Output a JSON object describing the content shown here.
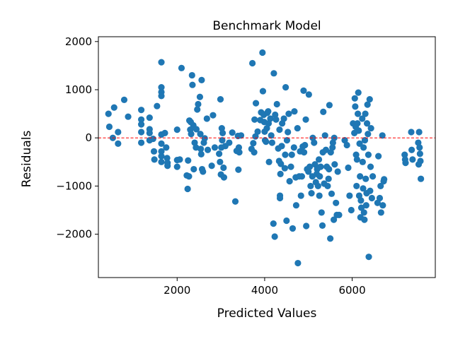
{
  "chart_data": {
    "type": "scatter",
    "title": "Benchmark Model",
    "xlabel": "Predicted Values",
    "ylabel": "Residuals",
    "xlim": [
      200,
      7900
    ],
    "ylim": [
      -2900,
      2100
    ],
    "xticks": [
      2000,
      4000,
      6000
    ],
    "yticks": [
      2000,
      1000,
      0,
      -1000,
      -2000
    ],
    "xtick_labels": [
      "2000",
      "4000",
      "6000"
    ],
    "ytick_labels": [
      "2000",
      "1000",
      "0",
      "−1000",
      "−2000"
    ],
    "grid": false,
    "reference_line": {
      "y": 0,
      "color": "#ff0000",
      "style": "dashed"
    },
    "marker_color": "#1f77b4",
    "points": [
      [
        430,
        500
      ],
      [
        450,
        230
      ],
      [
        530,
        0
      ],
      [
        560,
        630
      ],
      [
        650,
        120
      ],
      [
        650,
        -120
      ],
      [
        790,
        790
      ],
      [
        880,
        440
      ],
      [
        1180,
        580
      ],
      [
        1180,
        380
      ],
      [
        1180,
        280
      ],
      [
        1180,
        120
      ],
      [
        1180,
        -100
      ],
      [
        1370,
        420
      ],
      [
        1370,
        180
      ],
      [
        1370,
        100
      ],
      [
        1370,
        -50
      ],
      [
        1450,
        -20
      ],
      [
        1470,
        -280
      ],
      [
        1480,
        -450
      ],
      [
        1540,
        660
      ],
      [
        1640,
        1570
      ],
      [
        1640,
        1050
      ],
      [
        1640,
        950
      ],
      [
        1640,
        870
      ],
      [
        1640,
        70
      ],
      [
        1640,
        -120
      ],
      [
        1640,
        -280
      ],
      [
        1640,
        -380
      ],
      [
        1640,
        -500
      ],
      [
        1720,
        100
      ],
      [
        1750,
        -200
      ],
      [
        1770,
        -420
      ],
      [
        1780,
        -520
      ],
      [
        1780,
        -580
      ],
      [
        2000,
        -600
      ],
      [
        2000,
        -460
      ],
      [
        2000,
        170
      ],
      [
        2060,
        -450
      ],
      [
        2100,
        1450
      ],
      [
        2220,
        -780
      ],
      [
        2240,
        -1060
      ],
      [
        2250,
        -470
      ],
      [
        2270,
        -800
      ],
      [
        2280,
        360
      ],
      [
        2300,
        170
      ],
      [
        2310,
        330
      ],
      [
        2320,
        80
      ],
      [
        2340,
        1300
      ],
      [
        2350,
        1100
      ],
      [
        2370,
        260
      ],
      [
        2380,
        -650
      ],
      [
        2400,
        -100
      ],
      [
        2430,
        -200
      ],
      [
        2440,
        180
      ],
      [
        2460,
        590
      ],
      [
        2480,
        700
      ],
      [
        2520,
        850
      ],
      [
        2530,
        80
      ],
      [
        2540,
        -230
      ],
      [
        2550,
        -340
      ],
      [
        2560,
        1200
      ],
      [
        2570,
        -650
      ],
      [
        2590,
        -700
      ],
      [
        2610,
        -100
      ],
      [
        2630,
        -10
      ],
      [
        2680,
        400
      ],
      [
        2700,
        -250
      ],
      [
        2790,
        -580
      ],
      [
        2820,
        470
      ],
      [
        2860,
        -200
      ],
      [
        2960,
        -330
      ],
      [
        2980,
        -500
      ],
      [
        2990,
        800
      ],
      [
        3000,
        -760
      ],
      [
        3010,
        -200
      ],
      [
        3020,
        200
      ],
      [
        3030,
        -50
      ],
      [
        3040,
        100
      ],
      [
        3060,
        -620
      ],
      [
        3070,
        -820
      ],
      [
        3100,
        -170
      ],
      [
        3190,
        -100
      ],
      [
        3260,
        110
      ],
      [
        3330,
        -1320
      ],
      [
        3360,
        -270
      ],
      [
        3390,
        40
      ],
      [
        3400,
        -660
      ],
      [
        3410,
        -200
      ],
      [
        3420,
        -300
      ],
      [
        3460,
        50
      ],
      [
        3700,
        -230
      ],
      [
        3720,
        1550
      ],
      [
        3740,
        -110
      ],
      [
        3760,
        -300
      ],
      [
        3770,
        380
      ],
      [
        3790,
        30
      ],
      [
        3800,
        720
      ],
      [
        3840,
        130
      ],
      [
        3900,
        370
      ],
      [
        3920,
        530
      ],
      [
        3950,
        1770
      ],
      [
        3960,
        970
      ],
      [
        3980,
        480
      ],
      [
        3990,
        330
      ],
      [
        4000,
        130
      ],
      [
        4010,
        -50
      ],
      [
        4030,
        -80
      ],
      [
        4050,
        200
      ],
      [
        4060,
        520
      ],
      [
        4080,
        550
      ],
      [
        4090,
        300
      ],
      [
        4100,
        -500
      ],
      [
        4130,
        400
      ],
      [
        4150,
        50
      ],
      [
        4170,
        -100
      ],
      [
        4200,
        -1780
      ],
      [
        4210,
        1340
      ],
      [
        4230,
        -2050
      ],
      [
        4240,
        480
      ],
      [
        4260,
        380
      ],
      [
        4280,
        700
      ],
      [
        4310,
        -220
      ],
      [
        4330,
        -480
      ],
      [
        4340,
        170
      ],
      [
        4350,
        -1200
      ],
      [
        4350,
        -1250
      ],
      [
        4360,
        -750
      ],
      [
        4370,
        -540
      ],
      [
        4390,
        -170
      ],
      [
        4400,
        300
      ],
      [
        4440,
        400
      ],
      [
        4460,
        -630
      ],
      [
        4470,
        -350
      ],
      [
        4480,
        1050
      ],
      [
        4500,
        -1720
      ],
      [
        4510,
        -50
      ],
      [
        4530,
        120
      ],
      [
        4550,
        500
      ],
      [
        4570,
        -900
      ],
      [
        4600,
        -600
      ],
      [
        4620,
        -350
      ],
      [
        4640,
        -1880
      ],
      [
        4670,
        -200
      ],
      [
        4680,
        550
      ],
      [
        4710,
        -820
      ],
      [
        4720,
        -1400
      ],
      [
        4750,
        200
      ],
      [
        4760,
        -2600
      ],
      [
        4790,
        -800
      ],
      [
        4810,
        -280
      ],
      [
        4830,
        -1200
      ],
      [
        4850,
        -800
      ],
      [
        4870,
        -180
      ],
      [
        4890,
        980
      ],
      [
        4900,
        -300
      ],
      [
        4920,
        -150
      ],
      [
        4940,
        380
      ],
      [
        4950,
        -1830
      ],
      [
        4970,
        -650
      ],
      [
        5000,
        -700
      ],
      [
        5010,
        900
      ],
      [
        5030,
        -600
      ],
      [
        5050,
        -1000
      ],
      [
        5070,
        -1150
      ],
      [
        5090,
        -800
      ],
      [
        5100,
        0
      ],
      [
        5130,
        -100
      ],
      [
        5150,
        -550
      ],
      [
        5170,
        -920
      ],
      [
        5190,
        -750
      ],
      [
        5200,
        -650
      ],
      [
        5220,
        -1000
      ],
      [
        5240,
        -450
      ],
      [
        5250,
        -1200
      ],
      [
        5260,
        -800
      ],
      [
        5280,
        -600
      ],
      [
        5300,
        -1550
      ],
      [
        5320,
        -1820
      ],
      [
        5330,
        -300
      ],
      [
        5340,
        540
      ],
      [
        5360,
        -950
      ],
      [
        5380,
        50
      ],
      [
        5400,
        -250
      ],
      [
        5420,
        -600
      ],
      [
        5440,
        -1000
      ],
      [
        5460,
        -850
      ],
      [
        5470,
        -650
      ],
      [
        5480,
        680
      ],
      [
        5500,
        -2090
      ],
      [
        5510,
        -300
      ],
      [
        5530,
        -1160
      ],
      [
        5550,
        -200
      ],
      [
        5560,
        -100
      ],
      [
        5580,
        -1700
      ],
      [
        5590,
        0
      ],
      [
        5600,
        -550
      ],
      [
        5630,
        -1350
      ],
      [
        5650,
        -1600
      ],
      [
        5670,
        -700
      ],
      [
        5700,
        -1600
      ],
      [
        5830,
        -50
      ],
      [
        5880,
        -150
      ],
      [
        5910,
        -620
      ],
      [
        5940,
        -1200
      ],
      [
        5980,
        -1500
      ],
      [
        6020,
        300
      ],
      [
        6050,
        100
      ],
      [
        6060,
        820
      ],
      [
        6070,
        650
      ],
      [
        6080,
        230
      ],
      [
        6090,
        -350
      ],
      [
        6100,
        -1000
      ],
      [
        6110,
        -450
      ],
      [
        6120,
        300
      ],
      [
        6130,
        500
      ],
      [
        6140,
        940
      ],
      [
        6150,
        150
      ],
      [
        6160,
        -1200
      ],
      [
        6170,
        -120
      ],
      [
        6180,
        -800
      ],
      [
        6190,
        -1650
      ],
      [
        6200,
        -1300
      ],
      [
        6210,
        -1450
      ],
      [
        6230,
        400
      ],
      [
        6240,
        -500
      ],
      [
        6250,
        -1050
      ],
      [
        6260,
        -200
      ],
      [
        6270,
        -1550
      ],
      [
        6280,
        -1700
      ],
      [
        6290,
        -50
      ],
      [
        6300,
        500
      ],
      [
        6310,
        -850
      ],
      [
        6320,
        -1400
      ],
      [
        6330,
        -1150
      ],
      [
        6340,
        300
      ],
      [
        6350,
        690
      ],
      [
        6360,
        80
      ],
      [
        6370,
        -350
      ],
      [
        6380,
        -2470
      ],
      [
        6400,
        800
      ],
      [
        6410,
        -1100
      ],
      [
        6420,
        -600
      ],
      [
        6430,
        200
      ],
      [
        6450,
        -1250
      ],
      [
        6470,
        -800
      ],
      [
        6580,
        -1350
      ],
      [
        6600,
        -380
      ],
      [
        6630,
        -1250
      ],
      [
        6650,
        -1000
      ],
      [
        6660,
        -1550
      ],
      [
        6690,
        50
      ],
      [
        6700,
        -1400
      ],
      [
        6720,
        -900
      ],
      [
        6730,
        -860
      ],
      [
        7200,
        -350
      ],
      [
        7210,
        -450
      ],
      [
        7220,
        -520
      ],
      [
        7350,
        120
      ],
      [
        7360,
        -250
      ],
      [
        7380,
        -450
      ],
      [
        7510,
        -100
      ],
      [
        7520,
        -550
      ],
      [
        7530,
        120
      ],
      [
        7540,
        -200
      ],
      [
        7550,
        -330
      ],
      [
        7560,
        -480
      ],
      [
        7570,
        -850
      ]
    ]
  }
}
